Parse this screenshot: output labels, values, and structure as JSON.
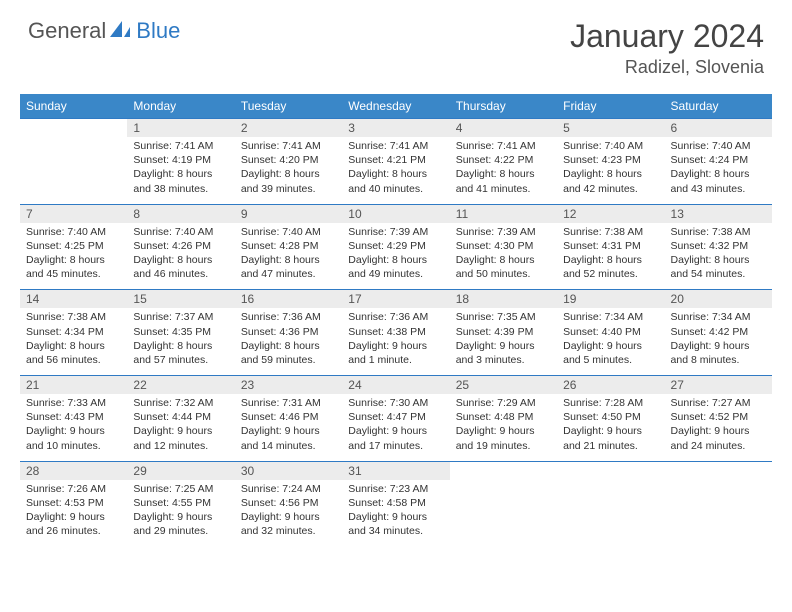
{
  "logo": {
    "general": "General",
    "blue": "Blue"
  },
  "title": "January 2024",
  "location": "Radizel, Slovenia",
  "colors": {
    "header_bg": "#3a87c8",
    "daynum_bg": "#ececec",
    "rule": "#2f7ac4",
    "logo_blue": "#2f7ac4"
  },
  "day_headers": [
    "Sunday",
    "Monday",
    "Tuesday",
    "Wednesday",
    "Thursday",
    "Friday",
    "Saturday"
  ],
  "weeks": [
    {
      "nums": [
        "",
        "1",
        "2",
        "3",
        "4",
        "5",
        "6"
      ],
      "cells": [
        {
          "empty": true
        },
        {
          "sunrise": "Sunrise: 7:41 AM",
          "sunset": "Sunset: 4:19 PM",
          "day1": "Daylight: 8 hours",
          "day2": "and 38 minutes."
        },
        {
          "sunrise": "Sunrise: 7:41 AM",
          "sunset": "Sunset: 4:20 PM",
          "day1": "Daylight: 8 hours",
          "day2": "and 39 minutes."
        },
        {
          "sunrise": "Sunrise: 7:41 AM",
          "sunset": "Sunset: 4:21 PM",
          "day1": "Daylight: 8 hours",
          "day2": "and 40 minutes."
        },
        {
          "sunrise": "Sunrise: 7:41 AM",
          "sunset": "Sunset: 4:22 PM",
          "day1": "Daylight: 8 hours",
          "day2": "and 41 minutes."
        },
        {
          "sunrise": "Sunrise: 7:40 AM",
          "sunset": "Sunset: 4:23 PM",
          "day1": "Daylight: 8 hours",
          "day2": "and 42 minutes."
        },
        {
          "sunrise": "Sunrise: 7:40 AM",
          "sunset": "Sunset: 4:24 PM",
          "day1": "Daylight: 8 hours",
          "day2": "and 43 minutes."
        }
      ]
    },
    {
      "nums": [
        "7",
        "8",
        "9",
        "10",
        "11",
        "12",
        "13"
      ],
      "cells": [
        {
          "sunrise": "Sunrise: 7:40 AM",
          "sunset": "Sunset: 4:25 PM",
          "day1": "Daylight: 8 hours",
          "day2": "and 45 minutes."
        },
        {
          "sunrise": "Sunrise: 7:40 AM",
          "sunset": "Sunset: 4:26 PM",
          "day1": "Daylight: 8 hours",
          "day2": "and 46 minutes."
        },
        {
          "sunrise": "Sunrise: 7:40 AM",
          "sunset": "Sunset: 4:28 PM",
          "day1": "Daylight: 8 hours",
          "day2": "and 47 minutes."
        },
        {
          "sunrise": "Sunrise: 7:39 AM",
          "sunset": "Sunset: 4:29 PM",
          "day1": "Daylight: 8 hours",
          "day2": "and 49 minutes."
        },
        {
          "sunrise": "Sunrise: 7:39 AM",
          "sunset": "Sunset: 4:30 PM",
          "day1": "Daylight: 8 hours",
          "day2": "and 50 minutes."
        },
        {
          "sunrise": "Sunrise: 7:38 AM",
          "sunset": "Sunset: 4:31 PM",
          "day1": "Daylight: 8 hours",
          "day2": "and 52 minutes."
        },
        {
          "sunrise": "Sunrise: 7:38 AM",
          "sunset": "Sunset: 4:32 PM",
          "day1": "Daylight: 8 hours",
          "day2": "and 54 minutes."
        }
      ]
    },
    {
      "nums": [
        "14",
        "15",
        "16",
        "17",
        "18",
        "19",
        "20"
      ],
      "cells": [
        {
          "sunrise": "Sunrise: 7:38 AM",
          "sunset": "Sunset: 4:34 PM",
          "day1": "Daylight: 8 hours",
          "day2": "and 56 minutes."
        },
        {
          "sunrise": "Sunrise: 7:37 AM",
          "sunset": "Sunset: 4:35 PM",
          "day1": "Daylight: 8 hours",
          "day2": "and 57 minutes."
        },
        {
          "sunrise": "Sunrise: 7:36 AM",
          "sunset": "Sunset: 4:36 PM",
          "day1": "Daylight: 8 hours",
          "day2": "and 59 minutes."
        },
        {
          "sunrise": "Sunrise: 7:36 AM",
          "sunset": "Sunset: 4:38 PM",
          "day1": "Daylight: 9 hours",
          "day2": "and 1 minute."
        },
        {
          "sunrise": "Sunrise: 7:35 AM",
          "sunset": "Sunset: 4:39 PM",
          "day1": "Daylight: 9 hours",
          "day2": "and 3 minutes."
        },
        {
          "sunrise": "Sunrise: 7:34 AM",
          "sunset": "Sunset: 4:40 PM",
          "day1": "Daylight: 9 hours",
          "day2": "and 5 minutes."
        },
        {
          "sunrise": "Sunrise: 7:34 AM",
          "sunset": "Sunset: 4:42 PM",
          "day1": "Daylight: 9 hours",
          "day2": "and 8 minutes."
        }
      ]
    },
    {
      "nums": [
        "21",
        "22",
        "23",
        "24",
        "25",
        "26",
        "27"
      ],
      "cells": [
        {
          "sunrise": "Sunrise: 7:33 AM",
          "sunset": "Sunset: 4:43 PM",
          "day1": "Daylight: 9 hours",
          "day2": "and 10 minutes."
        },
        {
          "sunrise": "Sunrise: 7:32 AM",
          "sunset": "Sunset: 4:44 PM",
          "day1": "Daylight: 9 hours",
          "day2": "and 12 minutes."
        },
        {
          "sunrise": "Sunrise: 7:31 AM",
          "sunset": "Sunset: 4:46 PM",
          "day1": "Daylight: 9 hours",
          "day2": "and 14 minutes."
        },
        {
          "sunrise": "Sunrise: 7:30 AM",
          "sunset": "Sunset: 4:47 PM",
          "day1": "Daylight: 9 hours",
          "day2": "and 17 minutes."
        },
        {
          "sunrise": "Sunrise: 7:29 AM",
          "sunset": "Sunset: 4:48 PM",
          "day1": "Daylight: 9 hours",
          "day2": "and 19 minutes."
        },
        {
          "sunrise": "Sunrise: 7:28 AM",
          "sunset": "Sunset: 4:50 PM",
          "day1": "Daylight: 9 hours",
          "day2": "and 21 minutes."
        },
        {
          "sunrise": "Sunrise: 7:27 AM",
          "sunset": "Sunset: 4:52 PM",
          "day1": "Daylight: 9 hours",
          "day2": "and 24 minutes."
        }
      ]
    },
    {
      "nums": [
        "28",
        "29",
        "30",
        "31",
        "",
        "",
        ""
      ],
      "cells": [
        {
          "sunrise": "Sunrise: 7:26 AM",
          "sunset": "Sunset: 4:53 PM",
          "day1": "Daylight: 9 hours",
          "day2": "and 26 minutes."
        },
        {
          "sunrise": "Sunrise: 7:25 AM",
          "sunset": "Sunset: 4:55 PM",
          "day1": "Daylight: 9 hours",
          "day2": "and 29 minutes."
        },
        {
          "sunrise": "Sunrise: 7:24 AM",
          "sunset": "Sunset: 4:56 PM",
          "day1": "Daylight: 9 hours",
          "day2": "and 32 minutes."
        },
        {
          "sunrise": "Sunrise: 7:23 AM",
          "sunset": "Sunset: 4:58 PM",
          "day1": "Daylight: 9 hours",
          "day2": "and 34 minutes."
        },
        {
          "empty": true
        },
        {
          "empty": true
        },
        {
          "empty": true
        }
      ]
    }
  ]
}
